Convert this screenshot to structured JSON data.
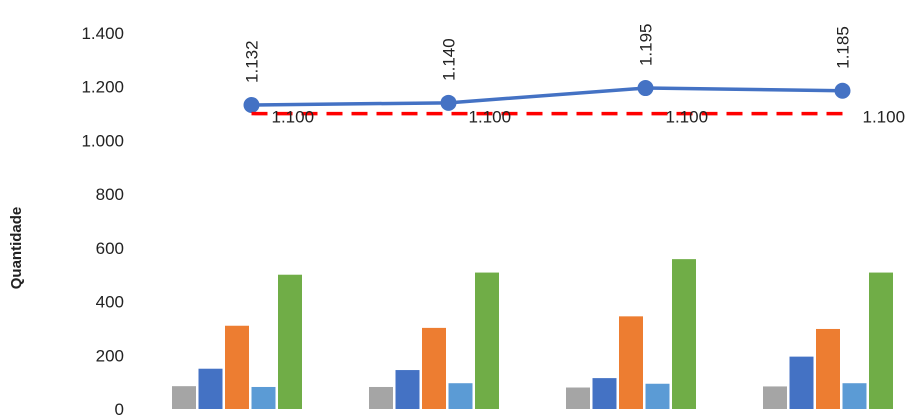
{
  "chart_data": {
    "type": "bar",
    "title": "",
    "xlabel": "",
    "ylabel": "Quantidade",
    "ylim": [
      0,
      1400
    ],
    "yticks": [
      0,
      200,
      400,
      600,
      800,
      1000,
      1200,
      1400
    ],
    "ytick_labels": [
      "0",
      "200",
      "400",
      "600",
      "800",
      "1.000",
      "1.200",
      "1.400"
    ],
    "grid": false,
    "legend": "none",
    "categories": [
      "",
      "",
      "",
      ""
    ],
    "bar_series": [
      {
        "color": "#a5a5a5",
        "values": [
          85,
          82,
          80,
          84
        ]
      },
      {
        "color": "#4472c4",
        "values": [
          150,
          145,
          115,
          195
        ]
      },
      {
        "color": "#ed7d31",
        "values": [
          310,
          302,
          345,
          298
        ]
      },
      {
        "color": "#5b9bd5",
        "values": [
          82,
          96,
          94,
          96
        ]
      },
      {
        "color": "#70ad47",
        "values": [
          500,
          508,
          558,
          508
        ]
      }
    ],
    "line_series": [
      {
        "style": "solid",
        "color": "#4472c4",
        "markers": true,
        "values": [
          1132,
          1140,
          1195,
          1185
        ],
        "labels": [
          "1.132",
          "1.140",
          "1.195",
          "1.185"
        ]
      },
      {
        "style": "dashed",
        "color": "#ff0000",
        "markers": false,
        "values": [
          1100,
          1100,
          1100,
          1100
        ],
        "labels": [
          "1.100",
          "1.100",
          "1.100",
          "1.100"
        ]
      }
    ]
  }
}
